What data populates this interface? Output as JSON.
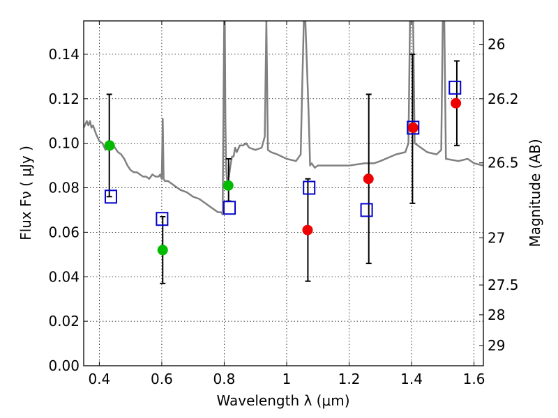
{
  "chart_data": {
    "type": "scatter",
    "xlabel": "Wavelength  λ (μm)",
    "ylabel": "Flux  Fν  ( μJy )",
    "y2label": "Magnitude (AB)",
    "xlim": [
      0.35,
      1.63
    ],
    "ylim": [
      0.0,
      0.155
    ],
    "xticks": [
      0.4,
      0.6,
      0.8,
      1.0,
      1.2,
      1.4,
      1.6
    ],
    "xtick_labels": [
      "0.4",
      "0.6",
      "0.8",
      "1",
      "1.2",
      "1.4",
      "1.6"
    ],
    "yticks": [
      0.0,
      0.02,
      0.04,
      0.06,
      0.08,
      0.1,
      0.12,
      0.14
    ],
    "ytick_labels": [
      "0.00",
      "0.02",
      "0.04",
      "0.06",
      "0.08",
      "0.10",
      "0.12",
      "0.14"
    ],
    "y2ticks": [
      {
        "label": "26",
        "flux": 0.1445
      },
      {
        "label": "26.2",
        "flux": 0.12
      },
      {
        "label": "26.5",
        "flux": 0.0912
      },
      {
        "label": "27",
        "flux": 0.0575
      },
      {
        "label": "27.5",
        "flux": 0.0363
      },
      {
        "label": "28",
        "flux": 0.0229
      },
      {
        "label": "29",
        "flux": 0.0091
      }
    ],
    "grid": true,
    "colors": {
      "spectrum": "#808080",
      "green": "#00bb00",
      "red": "#ee0000",
      "model": "#0000cc",
      "errorbar": "#000000"
    },
    "spectrum": {
      "x": [
        0.35,
        0.36,
        0.365,
        0.37,
        0.375,
        0.38,
        0.39,
        0.4,
        0.41,
        0.42,
        0.43,
        0.44,
        0.45,
        0.46,
        0.47,
        0.48,
        0.49,
        0.5,
        0.51,
        0.52,
        0.53,
        0.54,
        0.55,
        0.56,
        0.57,
        0.58,
        0.59,
        0.595,
        0.6,
        0.603,
        0.606,
        0.61,
        0.62,
        0.64,
        0.66,
        0.68,
        0.7,
        0.72,
        0.74,
        0.76,
        0.78,
        0.79,
        0.795,
        0.8,
        0.802,
        0.804,
        0.806,
        0.808,
        0.81,
        0.815,
        0.82,
        0.825,
        0.83,
        0.835,
        0.84,
        0.85,
        0.86,
        0.87,
        0.88,
        0.9,
        0.92,
        0.93,
        0.935,
        0.94,
        0.95,
        0.97,
        1.0,
        1.03,
        1.045,
        1.05,
        1.055,
        1.06,
        1.07,
        1.075,
        1.08,
        1.09,
        1.1,
        1.15,
        1.2,
        1.25,
        1.28,
        1.3,
        1.35,
        1.38,
        1.39,
        1.395,
        1.4,
        1.405,
        1.41,
        1.45,
        1.48,
        1.495,
        1.5,
        1.505,
        1.51,
        1.55,
        1.58,
        1.6,
        1.63
      ],
      "y": [
        0.107,
        0.11,
        0.108,
        0.11,
        0.107,
        0.108,
        0.104,
        0.101,
        0.1,
        0.097,
        0.101,
        0.1,
        0.098,
        0.096,
        0.095,
        0.093,
        0.09,
        0.088,
        0.087,
        0.087,
        0.086,
        0.085,
        0.085,
        0.084,
        0.086,
        0.085,
        0.085,
        0.086,
        0.084,
        0.111,
        0.084,
        0.083,
        0.083,
        0.081,
        0.079,
        0.078,
        0.076,
        0.075,
        0.073,
        0.071,
        0.069,
        0.069,
        0.068,
        0.155,
        0.155,
        0.11,
        0.09,
        0.085,
        0.083,
        0.085,
        0.09,
        0.094,
        0.094,
        0.098,
        0.096,
        0.099,
        0.099,
        0.1,
        0.098,
        0.097,
        0.098,
        0.103,
        0.155,
        0.097,
        0.096,
        0.095,
        0.093,
        0.092,
        0.095,
        0.127,
        0.155,
        0.155,
        0.115,
        0.09,
        0.091,
        0.089,
        0.09,
        0.09,
        0.09,
        0.091,
        0.091,
        0.092,
        0.095,
        0.096,
        0.1,
        0.155,
        0.155,
        0.155,
        0.1,
        0.096,
        0.095,
        0.097,
        0.155,
        0.155,
        0.093,
        0.092,
        0.093,
        0.091,
        0.09
      ]
    },
    "green_points": [
      {
        "x": 0.433,
        "y": 0.099
      },
      {
        "x": 0.603,
        "y": 0.052
      },
      {
        "x": 0.813,
        "y": 0.081
      }
    ],
    "red_points": [
      {
        "x": 1.067,
        "y": 0.061
      },
      {
        "x": 1.262,
        "y": 0.084
      },
      {
        "x": 1.405,
        "y": 0.107
      },
      {
        "x": 1.542,
        "y": 0.118
      }
    ],
    "model_squares": [
      {
        "x": 0.437,
        "y": 0.076
      },
      {
        "x": 0.601,
        "y": 0.066
      },
      {
        "x": 0.817,
        "y": 0.071
      },
      {
        "x": 1.072,
        "y": 0.08
      },
      {
        "x": 1.256,
        "y": 0.07
      },
      {
        "x": 1.405,
        "y": 0.107
      },
      {
        "x": 1.539,
        "y": 0.125
      }
    ],
    "error_bars": [
      {
        "x": 0.432,
        "low": 0.076,
        "high": 0.122
      },
      {
        "x": 0.603,
        "low": 0.037,
        "high": 0.067
      },
      {
        "x": 0.814,
        "low": 0.074,
        "high": 0.093
      },
      {
        "x": 1.068,
        "low": 0.038,
        "high": 0.084
      },
      {
        "x": 1.263,
        "low": 0.046,
        "high": 0.122
      },
      {
        "x": 1.403,
        "low": 0.073,
        "high": 0.14
      },
      {
        "x": 1.545,
        "low": 0.099,
        "high": 0.137
      }
    ]
  }
}
